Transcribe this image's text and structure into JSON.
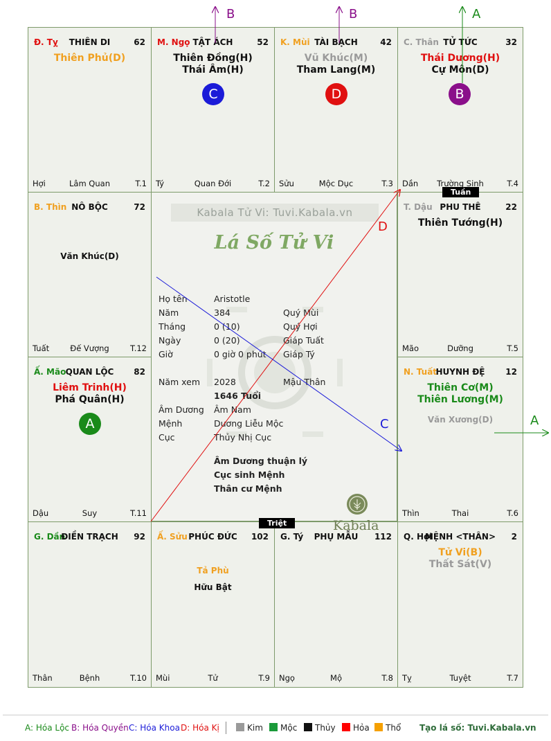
{
  "colors": {
    "loc": "#1a8a1a",
    "quyen": "#8a0f8a",
    "khoa": "#1b1bd8",
    "ki": "#e01010",
    "grid": "#7d9a6a"
  },
  "palaces": [
    {
      "id": "ty",
      "branch": "Đ. Tỵ",
      "branch_color": "#e01010",
      "name": "THIÊN DI",
      "num": "62",
      "stars": [
        {
          "t": "Thiên Phủ(D)",
          "c": "#f0a020"
        }
      ],
      "foot_l": "Hợi",
      "foot_c": "Lâm Quan",
      "foot_r": "T.1"
    },
    {
      "id": "ngo",
      "branch": "M. Ngọ",
      "branch_color": "#e01010",
      "name": "TẬT ÁCH",
      "num": "52",
      "stars": [
        {
          "t": "Thiên Đồng(H)",
          "c": "#111"
        },
        {
          "t": "Thái Âm(H)",
          "c": "#111"
        }
      ],
      "badge": {
        "t": "C",
        "c": "#1b1bd8"
      },
      "foot_l": "Tý",
      "foot_c": "Quan Đới",
      "foot_r": "T.2"
    },
    {
      "id": "mui",
      "branch": "K. Mùi",
      "branch_color": "#f0a020",
      "name": "TÀI BẠCH",
      "num": "42",
      "stars": [
        {
          "t": "Vũ Khúc(M)",
          "c": "#9a9a9a"
        },
        {
          "t": "Tham Lang(M)",
          "c": "#111"
        }
      ],
      "badge": {
        "t": "D",
        "c": "#e01010"
      },
      "foot_l": "Sửu",
      "foot_c": "Mộc Dục",
      "foot_r": "T.3"
    },
    {
      "id": "than",
      "branch": "C. Thân",
      "branch_color": "#9a9a9a",
      "name": "TỬ TỨC",
      "num": "32",
      "stars": [
        {
          "t": "Thái Dương(H)",
          "c": "#e01010"
        },
        {
          "t": "Cự Môn(D)",
          "c": "#111"
        }
      ],
      "badge": {
        "t": "B",
        "c": "#8a0f8a"
      },
      "foot_l": "Dần",
      "foot_c": "Trường Sinh",
      "foot_r": "T.4"
    },
    {
      "id": "thin",
      "branch": "B. Thìn",
      "branch_color": "#f0a020",
      "name": "NÔ BỘC",
      "num": "72",
      "stars": [
        {
          "t": "Văn Khúc(D)",
          "c": "#111",
          "small": true
        }
      ],
      "foot_l": "Tuất",
      "foot_c": "Đế Vượng",
      "foot_r": "T.12"
    },
    {
      "id": "dau",
      "branch": "T. Dậu",
      "branch_color": "#9a9a9a",
      "name": "PHU THÊ",
      "num": "22",
      "stars": [
        {
          "t": "Thiên Tướng(H)",
          "c": "#111"
        }
      ],
      "foot_l": "Mão",
      "foot_c": "Dưỡng",
      "foot_r": "T.5"
    },
    {
      "id": "mao",
      "branch": "Ấ. Mão",
      "branch_color": "#1a8a1a",
      "name": "QUAN LỘC",
      "num": "82",
      "stars": [
        {
          "t": "Liêm Trinh(H)",
          "c": "#e01010"
        },
        {
          "t": "Phá Quân(H)",
          "c": "#111"
        }
      ],
      "badge": {
        "t": "A",
        "c": "#1a8a1a"
      },
      "foot_l": "Dậu",
      "foot_c": "Suy",
      "foot_r": "T.11"
    },
    {
      "id": "tuat",
      "branch": "N. Tuất",
      "branch_color": "#f0a020",
      "name": "HUYNH ĐỆ",
      "num": "12",
      "stars": [
        {
          "t": "Thiên Cơ(M)",
          "c": "#1a8a1a"
        },
        {
          "t": "Thiên Lương(M)",
          "c": "#1a8a1a"
        },
        {
          "t": "Văn Xương(D)",
          "c": "#9a9a9a",
          "small": true
        }
      ],
      "foot_l": "Thìn",
      "foot_c": "Thai",
      "foot_r": "T.6"
    },
    {
      "id": "dan",
      "branch": "G. Dần",
      "branch_color": "#1a8a1a",
      "name": "ĐIỀN TRẠCH",
      "num": "92",
      "stars": [],
      "foot_l": "Thân",
      "foot_c": "Bệnh",
      "foot_r": "T.10"
    },
    {
      "id": "suu",
      "branch": "Ấ. Sửu",
      "branch_color": "#f0a020",
      "name": "PHÚC ĐỨC",
      "num": "102",
      "stars": [
        {
          "t": "Tả Phù",
          "c": "#f0a020",
          "small": true
        },
        {
          "t": "Hữu Bật",
          "c": "#111",
          "small": true
        }
      ],
      "foot_l": "Mùi",
      "foot_c": "Tử",
      "foot_r": "T.9"
    },
    {
      "id": "tyx",
      "branch": "G. Tý",
      "branch_color": "#111",
      "name": "PHỤ MẪU",
      "num": "112",
      "stars": [],
      "foot_l": "Ngọ",
      "foot_c": "Mộ",
      "foot_r": "T.8"
    },
    {
      "id": "hoi",
      "branch": "Q. Hợi",
      "branch_color": "#111",
      "name": "MỆNH <THÂN>",
      "num": "2",
      "stars": [
        {
          "t": "Tử Vi(B)",
          "c": "#f0a020"
        },
        {
          "t": "Thất Sát(V)",
          "c": "#9a9a9a"
        }
      ],
      "foot_l": "Tỵ",
      "foot_c": "Tuyệt",
      "foot_r": "T.7"
    }
  ],
  "center": {
    "watermark": "Kabala Tử Vi: Tuvi.Kabala.vn",
    "title": "Lá Số Tử Vi",
    "rows": [
      {
        "l": "Họ tên",
        "v1": "Aristotle",
        "v2": ""
      },
      {
        "l": "Năm",
        "v1": "384",
        "v2": "Quý Mùi"
      },
      {
        "l": "Tháng",
        "v1": "0  (10)",
        "v2": "Quý Hợi"
      },
      {
        "l": "Ngày",
        "v1": "0  (20)",
        "v2": "Giáp Tuất"
      },
      {
        "l": "Giờ",
        "v1": "0 giờ 0 phút",
        "v2": "Giáp Tý"
      },
      {
        "l": "Năm xem",
        "v1": "2028",
        "v2": "Mậu Thân"
      },
      {
        "l": "",
        "v1": "1646 Tuổi",
        "v2": ""
      },
      {
        "l": "Âm Dương",
        "v1": "Âm Nam",
        "v2": ""
      },
      {
        "l": "Mệnh",
        "v1": "Dương Liễu Mộc",
        "v2": ""
      },
      {
        "l": "Cục",
        "v1": "Thủy Nhị Cục",
        "v2": ""
      }
    ],
    "notes": [
      "Âm Dương thuận lý",
      "Cục sinh Mệnh",
      "Thân cư Mệnh"
    ],
    "brand": "Kabala"
  },
  "tags": {
    "tuan": "Tuần",
    "triet": "Triệt"
  },
  "arrows": {
    "top_ngo": "B",
    "top_mui": "B",
    "top_than": "A",
    "right_tuat": "A",
    "diag_red": "D",
    "diag_blue": "C"
  },
  "legend": {
    "a": "A: Hóa Lộc",
    "b": "B: Hóa Quyền",
    "c": "C: Hóa Khoa",
    "d": "D: Hóa Kị",
    "elements": [
      {
        "t": "Kim",
        "c": "#9a9a9a"
      },
      {
        "t": "Mộc",
        "c": "#1a9a3a"
      },
      {
        "t": "Thủy",
        "c": "#111"
      },
      {
        "t": "Hỏa",
        "c": "#ff0000"
      },
      {
        "t": "Thổ",
        "c": "#f5a000"
      }
    ],
    "site": "Tạo lá số: Tuvi.Kabala.vn"
  }
}
